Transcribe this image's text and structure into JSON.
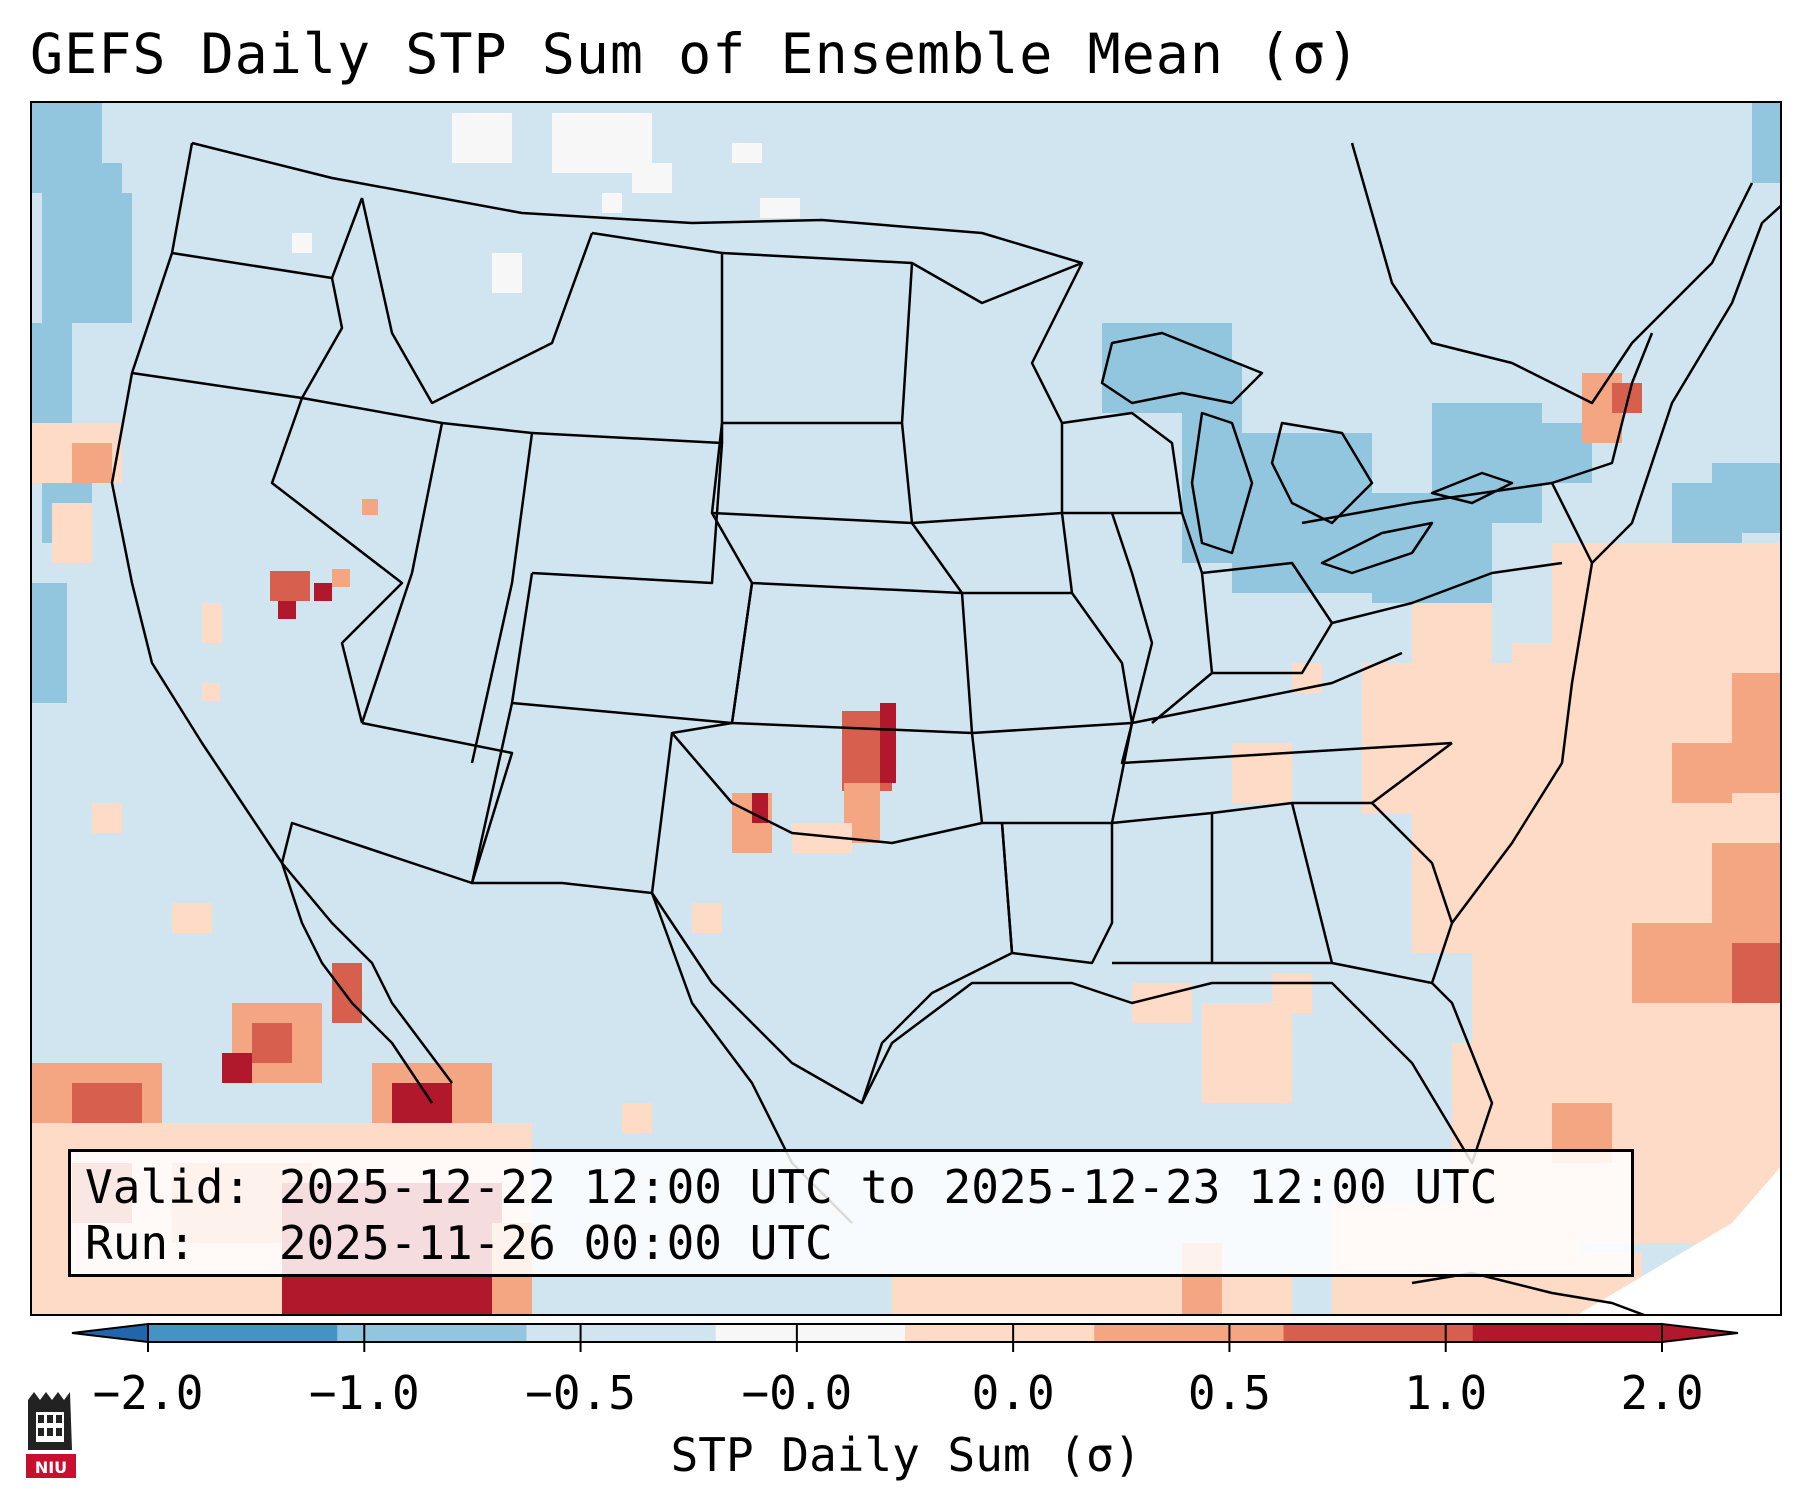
{
  "title": "GEFS Daily STP Sum of Ensemble Mean (σ)",
  "info": {
    "valid": "Valid: 2025-12-22 12:00 UTC to 2025-12-23 12:00 UTC",
    "run": "Run:   2025-11-26 00:00 UTC"
  },
  "colorbar": {
    "label": "STP Daily Sum (σ)",
    "ticks": [
      "−2.0",
      "−1.0",
      "−0.5",
      "−0.0",
      "0.0",
      "0.5",
      "1.0",
      "2.0"
    ],
    "colors": [
      "#4393c3",
      "#92c5de",
      "#d1e5f0",
      "#f7f7f7",
      "#fddbc7",
      "#f4a582",
      "#d6604d",
      "#b2182b"
    ],
    "under_color": "#2166ac",
    "over_color": "#b2182b"
  },
  "map": {
    "background_color": "#d1e5f0",
    "boundary_color": "#000000"
  },
  "logo": {
    "text": "NIU",
    "color": "#c8102e"
  }
}
